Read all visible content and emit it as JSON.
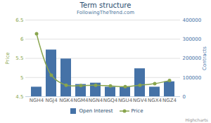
{
  "chart_data": {
    "type": "bar_line",
    "title": "Term structure",
    "subtitle": "FollowingTheTrend.com",
    "credits": "Highcharts",
    "categories": [
      "NGH4",
      "NGJ4",
      "NGK4",
      "NGM4",
      "NGN4",
      "NGQ4",
      "NGU4",
      "NGV4",
      "NGX4",
      "NGZ4"
    ],
    "y_label": "Price",
    "y2_label": "Contracts",
    "ylim": [
      4.5,
      6.5
    ],
    "yticks": [
      4.5,
      5,
      5.5,
      6,
      6.5
    ],
    "y2lim": [
      0,
      400000
    ],
    "y2ticks": [
      0,
      100000,
      200000,
      300000,
      400000
    ],
    "grid": true,
    "legend": "bottom",
    "series": [
      {
        "name": "Open Interest",
        "type": "bar",
        "axis": "y2",
        "color": "#4572a7",
        "values": [
          50000,
          244000,
          197000,
          64000,
          71000,
          50000,
          50000,
          146000,
          50000,
          78000
        ]
      },
      {
        "name": "Price",
        "type": "line",
        "color": "#89a54e",
        "marker": "circle",
        "values": [
          6.14,
          5.06,
          4.8,
          4.79,
          4.8,
          4.78,
          4.76,
          4.8,
          4.84,
          4.92
        ]
      }
    ]
  }
}
